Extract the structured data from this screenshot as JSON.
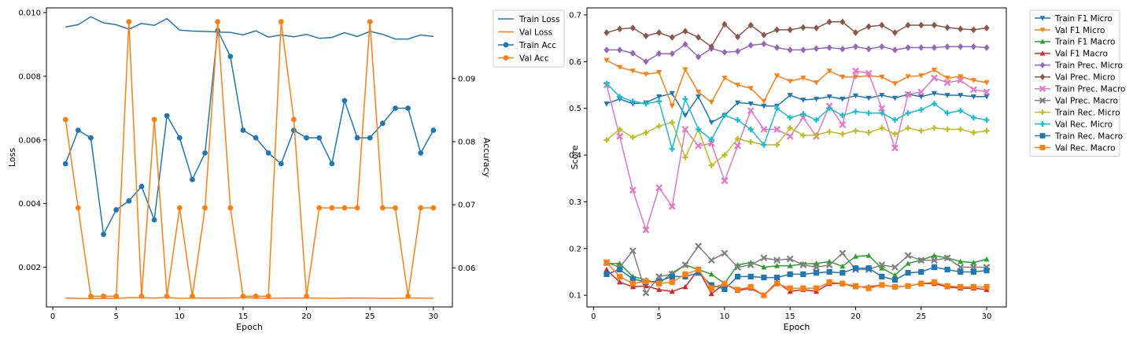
{
  "chart_data": [
    {
      "type": "line",
      "xlabel": "Epoch",
      "ylabel": "Loss",
      "ylabel_right": "Accuracy",
      "xlim": [
        -0.5,
        31.5
      ],
      "ylim": [
        0.00075,
        0.01015
      ],
      "ylim_right": [
        0.0538,
        0.1012
      ],
      "x_ticks": [
        0,
        5,
        10,
        15,
        20,
        25,
        30
      ],
      "y_ticks": [
        0.002,
        0.004,
        0.006,
        0.008,
        0.01
      ],
      "y_tick_labels": [
        "0.002",
        "0.004",
        "0.006",
        "0.008",
        "0.010"
      ],
      "y_ticks_right": [
        0.06,
        0.07,
        0.08,
        0.09
      ],
      "y_tick_labels_right": [
        "0.06",
        "0.07",
        "0.08",
        "0.09"
      ],
      "grid": false,
      "legend_position": "outside-top-right",
      "x": [
        1,
        2,
        3,
        4,
        5,
        6,
        7,
        8,
        9,
        10,
        11,
        12,
        13,
        14,
        15,
        16,
        17,
        18,
        19,
        20,
        21,
        22,
        23,
        24,
        25,
        26,
        27,
        28,
        29,
        30
      ],
      "series": [
        {
          "name": "Train Loss",
          "axis": "left",
          "color": "#1f77b4",
          "marker": "none",
          "values": [
            0.00955,
            0.00962,
            0.00987,
            0.00968,
            0.00962,
            0.00948,
            0.00966,
            0.0096,
            0.00981,
            0.00945,
            0.00942,
            0.00941,
            0.00939,
            0.00938,
            0.0093,
            0.00943,
            0.00923,
            0.0093,
            0.00924,
            0.00932,
            0.00919,
            0.00922,
            0.00937,
            0.00925,
            0.00941,
            0.00932,
            0.00917,
            0.00917,
            0.0093,
            0.00925
          ]
        },
        {
          "name": "Val Loss",
          "axis": "left",
          "color": "#ff7f0e",
          "marker": "none",
          "values": [
            0.00103,
            0.00102,
            0.00101,
            0.00102,
            0.00102,
            0.00104,
            0.00104,
            0.00103,
            0.00105,
            0.00102,
            0.00103,
            0.00103,
            0.00103,
            0.00103,
            0.00104,
            0.00103,
            0.00102,
            0.00103,
            0.00103,
            0.00103,
            0.00103,
            0.00102,
            0.00103,
            0.00103,
            0.00103,
            0.00102,
            0.00102,
            0.00103,
            0.00103,
            0.00102
          ]
        },
        {
          "name": "Train Acc",
          "axis": "right",
          "color": "#1f77b4",
          "marker": "circle",
          "values": [
            0.0765,
            0.0818,
            0.0806,
            0.0653,
            0.0692,
            0.0706,
            0.0729,
            0.0676,
            0.0841,
            0.0806,
            0.074,
            0.0782,
            0.0976,
            0.0935,
            0.0818,
            0.0806,
            0.0782,
            0.0765,
            0.0818,
            0.0806,
            0.0806,
            0.0765,
            0.0865,
            0.0806,
            0.0806,
            0.0829,
            0.0853,
            0.0853,
            0.0782,
            0.0818
          ]
        },
        {
          "name": "Val Acc",
          "axis": "right",
          "color": "#ff7f0e",
          "marker": "circle",
          "values": [
            0.0835,
            0.0695,
            0.0555,
            0.0555,
            0.0555,
            0.099,
            0.0555,
            0.0835,
            0.0555,
            0.0695,
            0.0555,
            0.0695,
            0.099,
            0.0695,
            0.0555,
            0.0555,
            0.0555,
            0.099,
            0.0835,
            0.0555,
            0.0695,
            0.0695,
            0.0695,
            0.0695,
            0.099,
            0.0695,
            0.0695,
            0.0555,
            0.0695,
            0.0695
          ]
        }
      ]
    },
    {
      "type": "line",
      "xlabel": "Epoch",
      "ylabel": "Score",
      "xlim": [
        -0.5,
        31.5
      ],
      "ylim": [
        0.075,
        0.715
      ],
      "x_ticks": [
        0,
        5,
        10,
        15,
        20,
        25,
        30
      ],
      "y_ticks": [
        0.1,
        0.2,
        0.3,
        0.4,
        0.5,
        0.6,
        0.7
      ],
      "y_tick_labels": [
        "0.1",
        "0.2",
        "0.3",
        "0.4",
        "0.5",
        "0.6",
        "0.7"
      ],
      "grid": false,
      "legend_position": "outside-top-right",
      "x": [
        1,
        2,
        3,
        4,
        5,
        6,
        7,
        8,
        9,
        10,
        11,
        12,
        13,
        14,
        15,
        16,
        17,
        18,
        19,
        20,
        21,
        22,
        23,
        24,
        25,
        26,
        27,
        28,
        29,
        30
      ],
      "series": [
        {
          "name": "Train F1 Micro",
          "color": "#1f77b4",
          "marker": "tri_down",
          "values": [
            0.51,
            0.52,
            0.51,
            0.512,
            0.525,
            0.532,
            0.485,
            0.525,
            0.47,
            0.485,
            0.512,
            0.51,
            0.505,
            0.505,
            0.528,
            0.518,
            0.52,
            0.525,
            0.52,
            0.527,
            0.522,
            0.528,
            0.522,
            0.53,
            0.525,
            0.532,
            0.528,
            0.528,
            0.525,
            0.525
          ]
        },
        {
          "name": "Val F1 Micro",
          "color": "#ff7f0e",
          "marker": "tri_down",
          "values": [
            0.603,
            0.588,
            0.58,
            0.573,
            0.577,
            0.505,
            0.583,
            0.535,
            0.513,
            0.565,
            0.55,
            0.543,
            0.515,
            0.57,
            0.558,
            0.565,
            0.555,
            0.58,
            0.567,
            0.567,
            0.57,
            0.567,
            0.553,
            0.568,
            0.57,
            0.582,
            0.565,
            0.568,
            0.56,
            0.555
          ]
        },
        {
          "name": "Train F1 Macro",
          "color": "#2ca02c",
          "marker": "tri_up",
          "values": [
            0.168,
            0.168,
            0.14,
            0.133,
            0.125,
            0.148,
            0.165,
            0.155,
            0.145,
            0.125,
            0.165,
            0.17,
            0.16,
            0.163,
            0.163,
            0.167,
            0.168,
            0.172,
            0.162,
            0.183,
            0.185,
            0.158,
            0.143,
            0.168,
            0.175,
            0.185,
            0.18,
            0.172,
            0.17,
            0.177
          ]
        },
        {
          "name": "Val F1 Macro",
          "color": "#d62728",
          "marker": "tri_up",
          "values": [
            0.155,
            0.128,
            0.118,
            0.12,
            0.112,
            0.108,
            0.118,
            0.155,
            0.103,
            0.125,
            0.11,
            0.115,
            0.1,
            0.128,
            0.108,
            0.112,
            0.108,
            0.125,
            0.125,
            0.118,
            0.118,
            0.122,
            0.118,
            0.12,
            0.125,
            0.125,
            0.118,
            0.115,
            0.115,
            0.112
          ]
        },
        {
          "name": "Train Prec. Micro",
          "color": "#9467bd",
          "marker": "diamond",
          "values": [
            0.625,
            0.625,
            0.618,
            0.6,
            0.617,
            0.617,
            0.637,
            0.61,
            0.628,
            0.62,
            0.622,
            0.635,
            0.638,
            0.63,
            0.625,
            0.625,
            0.628,
            0.63,
            0.627,
            0.632,
            0.627,
            0.632,
            0.625,
            0.63,
            0.63,
            0.63,
            0.632,
            0.632,
            0.632,
            0.63
          ]
        },
        {
          "name": "Val Prec. Micro",
          "color": "#8c564b",
          "marker": "diamond",
          "values": [
            0.662,
            0.67,
            0.672,
            0.655,
            0.662,
            0.652,
            0.665,
            0.652,
            0.632,
            0.68,
            0.653,
            0.678,
            0.657,
            0.668,
            0.668,
            0.673,
            0.672,
            0.685,
            0.685,
            0.662,
            0.675,
            0.678,
            0.662,
            0.678,
            0.678,
            0.678,
            0.673,
            0.67,
            0.668,
            0.672
          ]
        },
        {
          "name": "Train Prec. Macro",
          "color": "#e377c2",
          "marker": "x",
          "values": [
            0.55,
            0.44,
            0.325,
            0.24,
            0.33,
            0.29,
            0.455,
            0.42,
            0.425,
            0.345,
            0.42,
            0.495,
            0.455,
            0.455,
            0.44,
            0.48,
            0.44,
            0.505,
            0.465,
            0.58,
            0.575,
            0.5,
            0.415,
            0.53,
            0.535,
            0.565,
            0.555,
            0.56,
            0.54,
            0.535
          ]
        },
        {
          "name": "Val Prec. Macro",
          "color": "#7f7f7f",
          "marker": "x",
          "values": [
            0.17,
            0.16,
            0.195,
            0.105,
            0.14,
            0.145,
            0.165,
            0.205,
            0.175,
            0.19,
            0.16,
            0.165,
            0.18,
            0.175,
            0.178,
            0.165,
            0.16,
            0.165,
            0.19,
            0.155,
            0.155,
            0.165,
            0.16,
            0.185,
            0.175,
            0.175,
            0.18,
            0.16,
            0.16,
            0.16
          ]
        },
        {
          "name": "Train Rec. Micro",
          "color": "#bcbd22",
          "marker": "plus",
          "values": [
            0.432,
            0.455,
            0.438,
            0.448,
            0.462,
            0.47,
            0.395,
            0.455,
            0.378,
            0.4,
            0.435,
            0.428,
            0.422,
            0.422,
            0.458,
            0.442,
            0.443,
            0.45,
            0.445,
            0.452,
            0.448,
            0.458,
            0.445,
            0.458,
            0.452,
            0.458,
            0.455,
            0.455,
            0.448,
            0.452
          ]
        },
        {
          "name": "Val Rec. Micro",
          "color": "#17becf",
          "marker": "plus",
          "values": [
            0.553,
            0.525,
            0.515,
            0.51,
            0.515,
            0.413,
            0.52,
            0.455,
            0.433,
            0.485,
            0.475,
            0.455,
            0.422,
            0.5,
            0.48,
            0.488,
            0.475,
            0.5,
            0.485,
            0.493,
            0.49,
            0.49,
            0.475,
            0.49,
            0.497,
            0.51,
            0.49,
            0.495,
            0.48,
            0.475
          ]
        },
        {
          "name": "Train Rec. Macro",
          "color": "#1f77b4",
          "marker": "square",
          "values": [
            0.145,
            0.155,
            0.135,
            0.128,
            0.13,
            0.14,
            0.14,
            0.148,
            0.122,
            0.113,
            0.14,
            0.14,
            0.138,
            0.138,
            0.145,
            0.145,
            0.148,
            0.15,
            0.148,
            0.158,
            0.158,
            0.14,
            0.133,
            0.148,
            0.15,
            0.16,
            0.155,
            0.15,
            0.15,
            0.153
          ]
        },
        {
          "name": "Val Rec. Macro",
          "color": "#ff7f0e",
          "marker": "square",
          "values": [
            0.17,
            0.14,
            0.125,
            0.13,
            0.125,
            0.128,
            0.145,
            0.155,
            0.115,
            0.125,
            0.112,
            0.118,
            0.1,
            0.125,
            0.115,
            0.115,
            0.115,
            0.128,
            0.125,
            0.12,
            0.115,
            0.122,
            0.118,
            0.12,
            0.125,
            0.128,
            0.12,
            0.118,
            0.118,
            0.118
          ]
        }
      ]
    }
  ]
}
